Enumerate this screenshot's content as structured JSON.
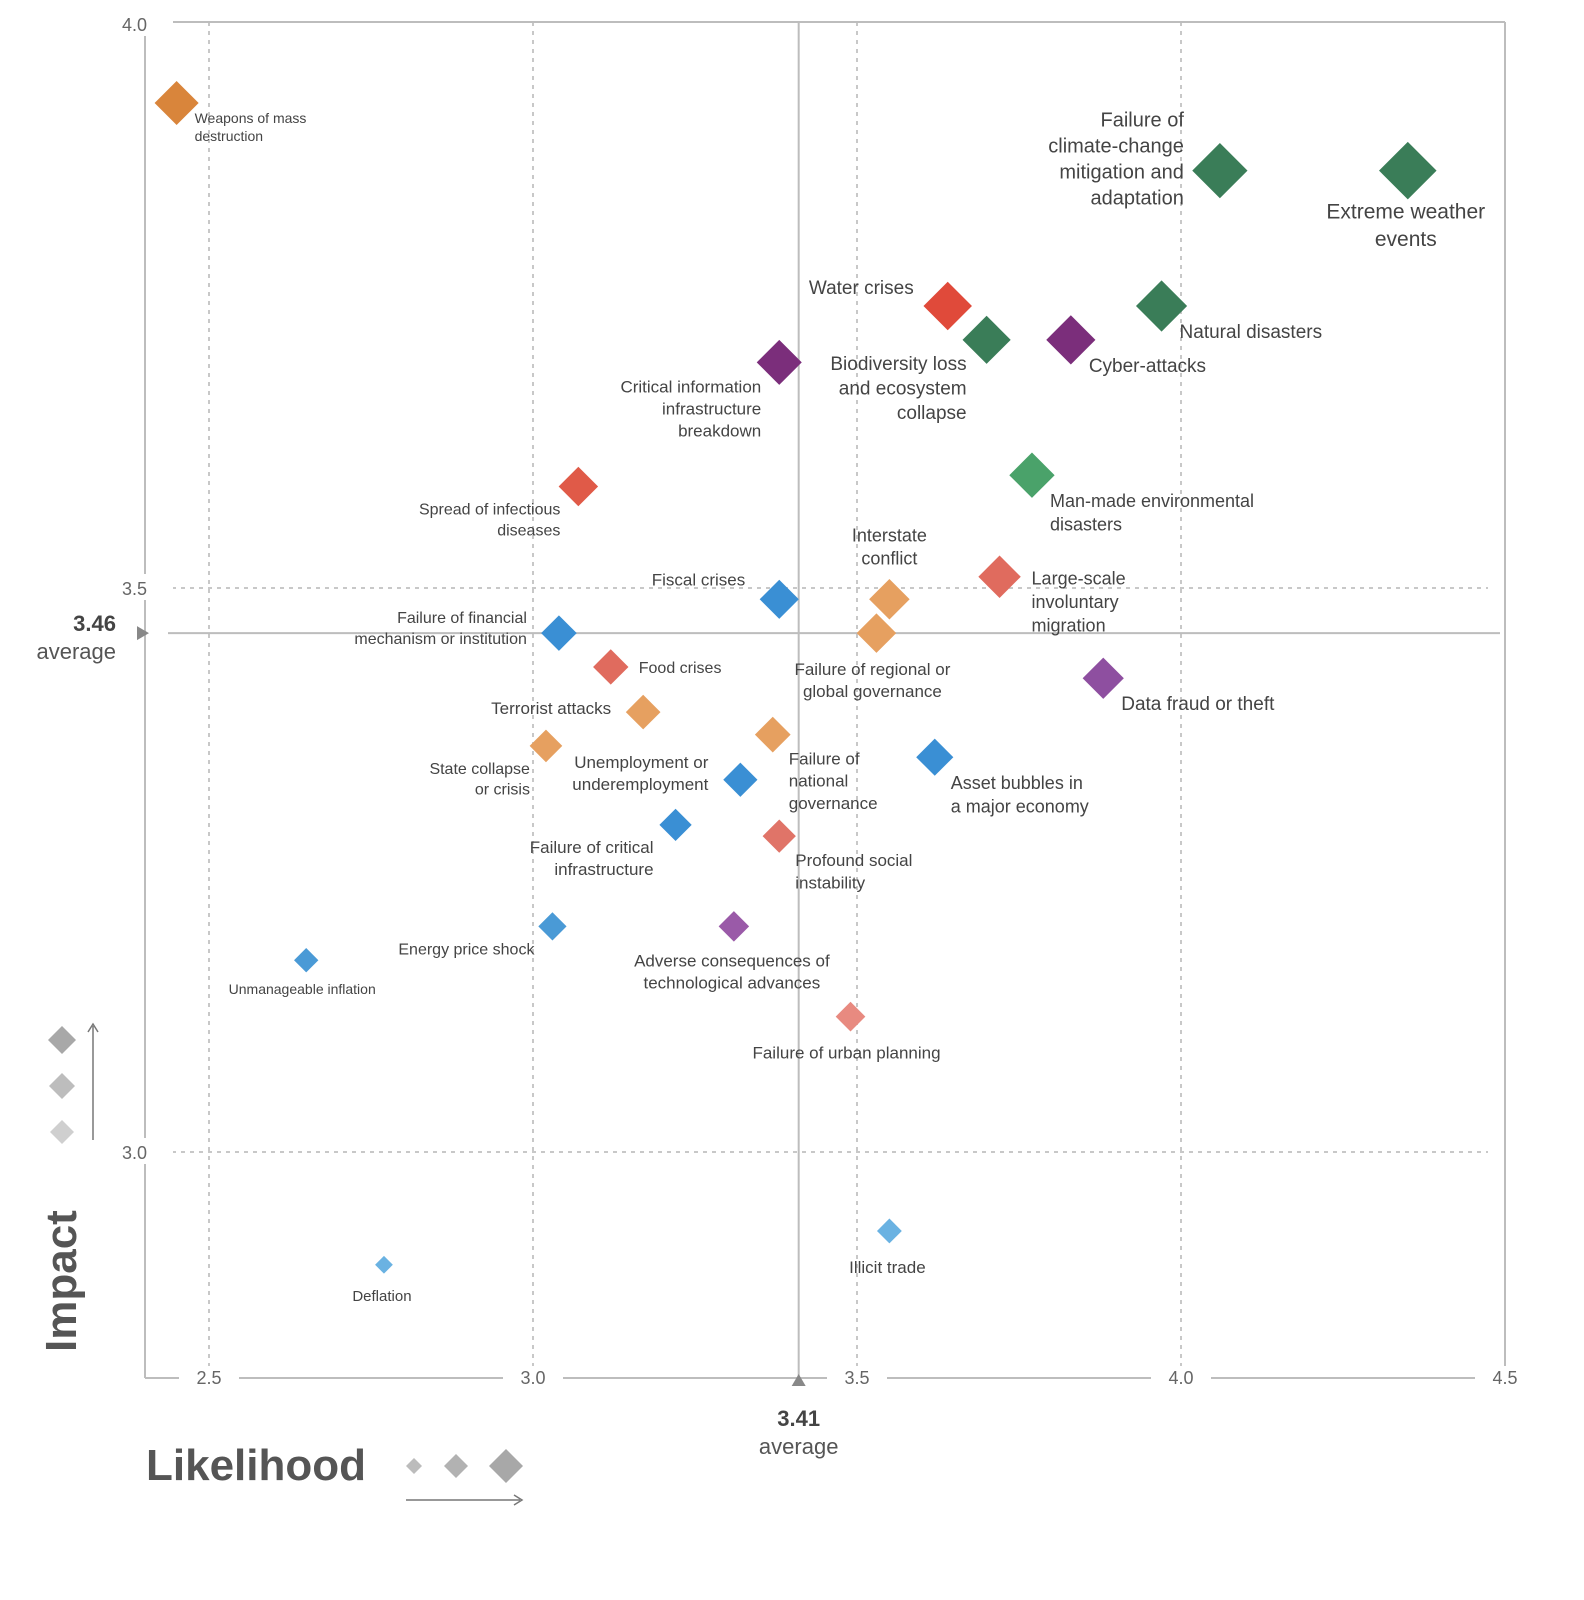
{
  "chart_data": {
    "type": "scatter",
    "title": "",
    "xlabel": "Likelihood",
    "ylabel": "Impact",
    "xlim": [
      2.4,
      4.5
    ],
    "ylim": [
      2.8,
      4.0
    ],
    "x_ticks": [
      "2.5",
      "3.0",
      "3.5",
      "4.0",
      "4.5"
    ],
    "y_ticks": [
      "3.0",
      "3.5",
      "4.0"
    ],
    "x_average": {
      "value": "3.41",
      "label": "average"
    },
    "y_average": {
      "value": "3.46",
      "label": "average"
    },
    "category_colors": {
      "economic": "#4a9ad6",
      "environmental": "#3a8c5c",
      "geopolitical": "#e69a5a",
      "societal": "#e06b5e",
      "technological": "#7b3f8c"
    },
    "points": [
      {
        "label": "Weapons of mass destruction",
        "x": 2.45,
        "y": 3.93,
        "category": "geopolitical",
        "color": "#d9853b"
      },
      {
        "label": "Failure of climate-change mitigation and adaptation",
        "x": 4.06,
        "y": 3.87,
        "category": "environmental",
        "color": "#3a7d58"
      },
      {
        "label": "Extreme weather events",
        "x": 4.35,
        "y": 3.87,
        "category": "environmental",
        "color": "#3a7d58"
      },
      {
        "label": "Water crises",
        "x": 3.64,
        "y": 3.75,
        "category": "societal",
        "color": "#e04a3a"
      },
      {
        "label": "Natural disasters",
        "x": 3.97,
        "y": 3.75,
        "category": "environmental",
        "color": "#3a7d58"
      },
      {
        "label": "Biodiversity loss and ecosystem collapse",
        "x": 3.7,
        "y": 3.72,
        "category": "environmental",
        "color": "#3a7d58"
      },
      {
        "label": "Cyber-attacks",
        "x": 3.83,
        "y": 3.72,
        "category": "technological",
        "color": "#7b2e7b"
      },
      {
        "label": "Critical information infrastructure breakdown",
        "x": 3.38,
        "y": 3.7,
        "category": "technological",
        "color": "#7b2e7b"
      },
      {
        "label": "Spread of infectious diseases",
        "x": 3.07,
        "y": 3.59,
        "category": "societal",
        "color": "#e05a48"
      },
      {
        "label": "Man-made environmental disasters",
        "x": 3.77,
        "y": 3.6,
        "category": "environmental",
        "color": "#4aa26a"
      },
      {
        "label": "Large-scale involuntary migration",
        "x": 3.72,
        "y": 3.51,
        "category": "societal",
        "color": "#e06b5e"
      },
      {
        "label": "Interstate conflict",
        "x": 3.55,
        "y": 3.49,
        "category": "geopolitical",
        "color": "#e6a060"
      },
      {
        "label": "Fiscal crises",
        "x": 3.38,
        "y": 3.49,
        "category": "economic",
        "color": "#3a8fd4"
      },
      {
        "label": "Failure of regional or global governance",
        "x": 3.53,
        "y": 3.46,
        "category": "geopolitical",
        "color": "#e6a060"
      },
      {
        "label": "Failure of financial mechanism or institution",
        "x": 3.04,
        "y": 3.46,
        "category": "economic",
        "color": "#3a8fd4"
      },
      {
        "label": "Food crises",
        "x": 3.12,
        "y": 3.43,
        "category": "societal",
        "color": "#e06b5e"
      },
      {
        "label": "Data fraud or theft",
        "x": 3.88,
        "y": 3.42,
        "category": "technological",
        "color": "#8e4fa0"
      },
      {
        "label": "Terrorist attacks",
        "x": 3.17,
        "y": 3.39,
        "category": "geopolitical",
        "color": "#e6a060"
      },
      {
        "label": "Failure of national governance",
        "x": 3.37,
        "y": 3.37,
        "category": "geopolitical",
        "color": "#e6a060"
      },
      {
        "label": "Asset bubbles in a major economy",
        "x": 3.62,
        "y": 3.35,
        "category": "economic",
        "color": "#3a8fd4"
      },
      {
        "label": "State collapse or crisis",
        "x": 3.02,
        "y": 3.36,
        "category": "geopolitical",
        "color": "#e6a060"
      },
      {
        "label": "Unemployment or underemployment",
        "x": 3.32,
        "y": 3.33,
        "category": "economic",
        "color": "#3a8fd4"
      },
      {
        "label": "Failure of critical infrastructure",
        "x": 3.22,
        "y": 3.29,
        "category": "economic",
        "color": "#3a8fd4"
      },
      {
        "label": "Profound social instability",
        "x": 3.38,
        "y": 3.28,
        "category": "societal",
        "color": "#e07468"
      },
      {
        "label": "Energy price shock",
        "x": 3.03,
        "y": 3.2,
        "category": "economic",
        "color": "#4a9ad6"
      },
      {
        "label": "Adverse consequences of technological advances",
        "x": 3.31,
        "y": 3.2,
        "category": "technological",
        "color": "#9a5aa8"
      },
      {
        "label": "Unmanageable inflation",
        "x": 2.65,
        "y": 3.17,
        "category": "economic",
        "color": "#4a9ad6"
      },
      {
        "label": "Failure of urban planning",
        "x": 3.49,
        "y": 3.12,
        "category": "societal",
        "color": "#e88a80"
      },
      {
        "label": "Illicit trade",
        "x": 3.55,
        "y": 2.93,
        "category": "economic",
        "color": "#6ab2e2"
      },
      {
        "label": "Deflation",
        "x": 2.77,
        "y": 2.9,
        "category": "economic",
        "color": "#6ab2e2"
      }
    ]
  }
}
